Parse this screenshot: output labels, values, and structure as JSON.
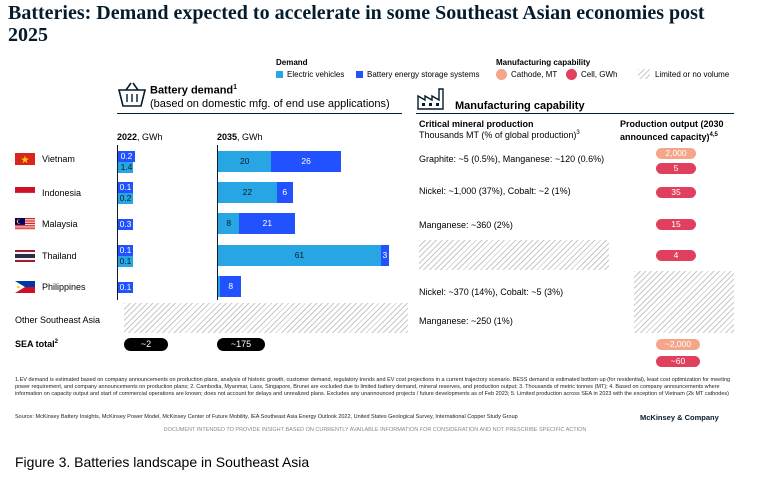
{
  "title": "Batteries: Demand expected to accelerate in some Southeast Asian economies post 2025",
  "legend": {
    "demand_header": "Demand",
    "ev_label": "Electric vehicles",
    "bess_label": "Battery energy storage systems",
    "mfg_header": "Manufacturing capability",
    "cathode_label": "Cathode, MT",
    "cell_label": "Cell, GWh",
    "limited_label": "Limited or no volume"
  },
  "colors": {
    "ev": "#27a6e3",
    "bess": "#2251ff",
    "cathode": "#f4a58a",
    "cell": "#e0405e",
    "dark": "#051c2c"
  },
  "demand_section": {
    "title": "Battery demand",
    "title_sup": "1",
    "subtitle": "(based on domestic mfg. of end use applications)",
    "col2022_year": "2022",
    "col2022_unit": ", GWh",
    "col2035_year": "2035",
    "col2035_unit": ", GWh"
  },
  "mfg_section": {
    "title": "Manufacturing capability",
    "critical_header": "Critical mineral production",
    "critical_sub": "Thousands MT (% of global production)",
    "critical_sub_sup": "3",
    "output_header": "Production output (2030 announced capacity)",
    "output_sup": "4,5"
  },
  "chart_data": {
    "type": "bar",
    "stacked": true,
    "orientation": "horizontal",
    "categories": [
      "Vietnam",
      "Indonesia",
      "Malaysia",
      "Thailand",
      "Philippines"
    ],
    "series_2022": [
      {
        "name": "Electric vehicles",
        "values": [
          1.4,
          0.2,
          0,
          0.1,
          0
        ]
      },
      {
        "name": "Battery energy storage systems",
        "values": [
          0.2,
          0.1,
          0.3,
          0.1,
          0.1
        ]
      }
    ],
    "series_2035": [
      {
        "name": "Electric vehicles",
        "values": [
          20,
          22,
          8,
          61,
          0
        ]
      },
      {
        "name": "Battery energy storage systems",
        "values": [
          26,
          6,
          21,
          3,
          8
        ]
      }
    ]
  },
  "rows": [
    {
      "country": "Vietnam",
      "v2022": [
        "1.4",
        "0.2"
      ],
      "v2035": [
        "20",
        "26"
      ],
      "mineral": "Graphite: ~5 (0.5%), Manganese: ~120 (0.6%)",
      "cathode": "2,000",
      "cell": "5"
    },
    {
      "country": "Indonesia",
      "v2022": [
        "0.2",
        "0.1"
      ],
      "v2035": [
        "22",
        "6"
      ],
      "mineral": "Nickel: ~1,000 (37%), Cobalt: ~2 (1%)",
      "cathode": "",
      "cell": "35"
    },
    {
      "country": "Malaysia",
      "v2022": [
        "",
        "0.3"
      ],
      "v2035": [
        "8",
        "21"
      ],
      "mineral": "Manganese: ~360 (2%)",
      "cathode": "",
      "cell": "15"
    },
    {
      "country": "Thailand",
      "v2022": [
        "0.1",
        "0.1"
      ],
      "v2035": [
        "61",
        "3"
      ],
      "mineral": "",
      "cathode": "",
      "cell": "4"
    },
    {
      "country": "Philippines",
      "v2022": [
        "",
        "0.1"
      ],
      "v2035": [
        "0",
        "8"
      ],
      "mineral": "Nickel: ~370 (14%), Cobalt: ~5 (3%)",
      "cathode": "",
      "cell": ""
    }
  ],
  "other_sea": {
    "label": "Other Southeast Asia",
    "mineral": "Manganese: ~250 (1%)"
  },
  "total": {
    "label": "SEA total",
    "label_sup": "2",
    "v2022": "~2",
    "v2035": "~175",
    "cathode": "~2,000",
    "cell": "~60"
  },
  "footnotes": "1.EV demand is estimated based on company announcements on production plans, analysis of historic growth, customer demand, regulatory trends and EV cost projections in a current trajectory scenario. BESS demand is estimated bottom up (for residential), least cost optimization for meeting power requirement, and company announcements on production plans; 2. Cambodia, Myanmar, Laos, Singapore, Brunei are excluded due to limited battery demand, mineral reserves, and production output; 3. Thousands of metric tonnes (MT); 4. Based on company announcements where information on capacity output and start of commercial operations are known; does not account for delays and unrealized plans. Excludes any unannounced projects / future developments as of Feb 2023; 5. Limited production across SEA in 2023 with the exception of Vietnam (2k MT cathodes)",
  "source": "Source: McKinsey Battery Insights, McKinsey Power Model, McKinsey Center of Future Mobility, IEA Southeast Asia Energy Outlook 2022, United States Geological Survey, International Copper Study Group",
  "brand": "McKinsey & Company",
  "disclaimer": "DOCUMENT INTENDED TO PROVIDE INSIGHT BASED ON CURRENTLY AVAILABLE INFORMATION FOR CONSIDERATION AND NOT PRESCRIBE SPECIFIC ACTION",
  "caption": "Figure 3. Batteries landscape in Southeast Asia"
}
